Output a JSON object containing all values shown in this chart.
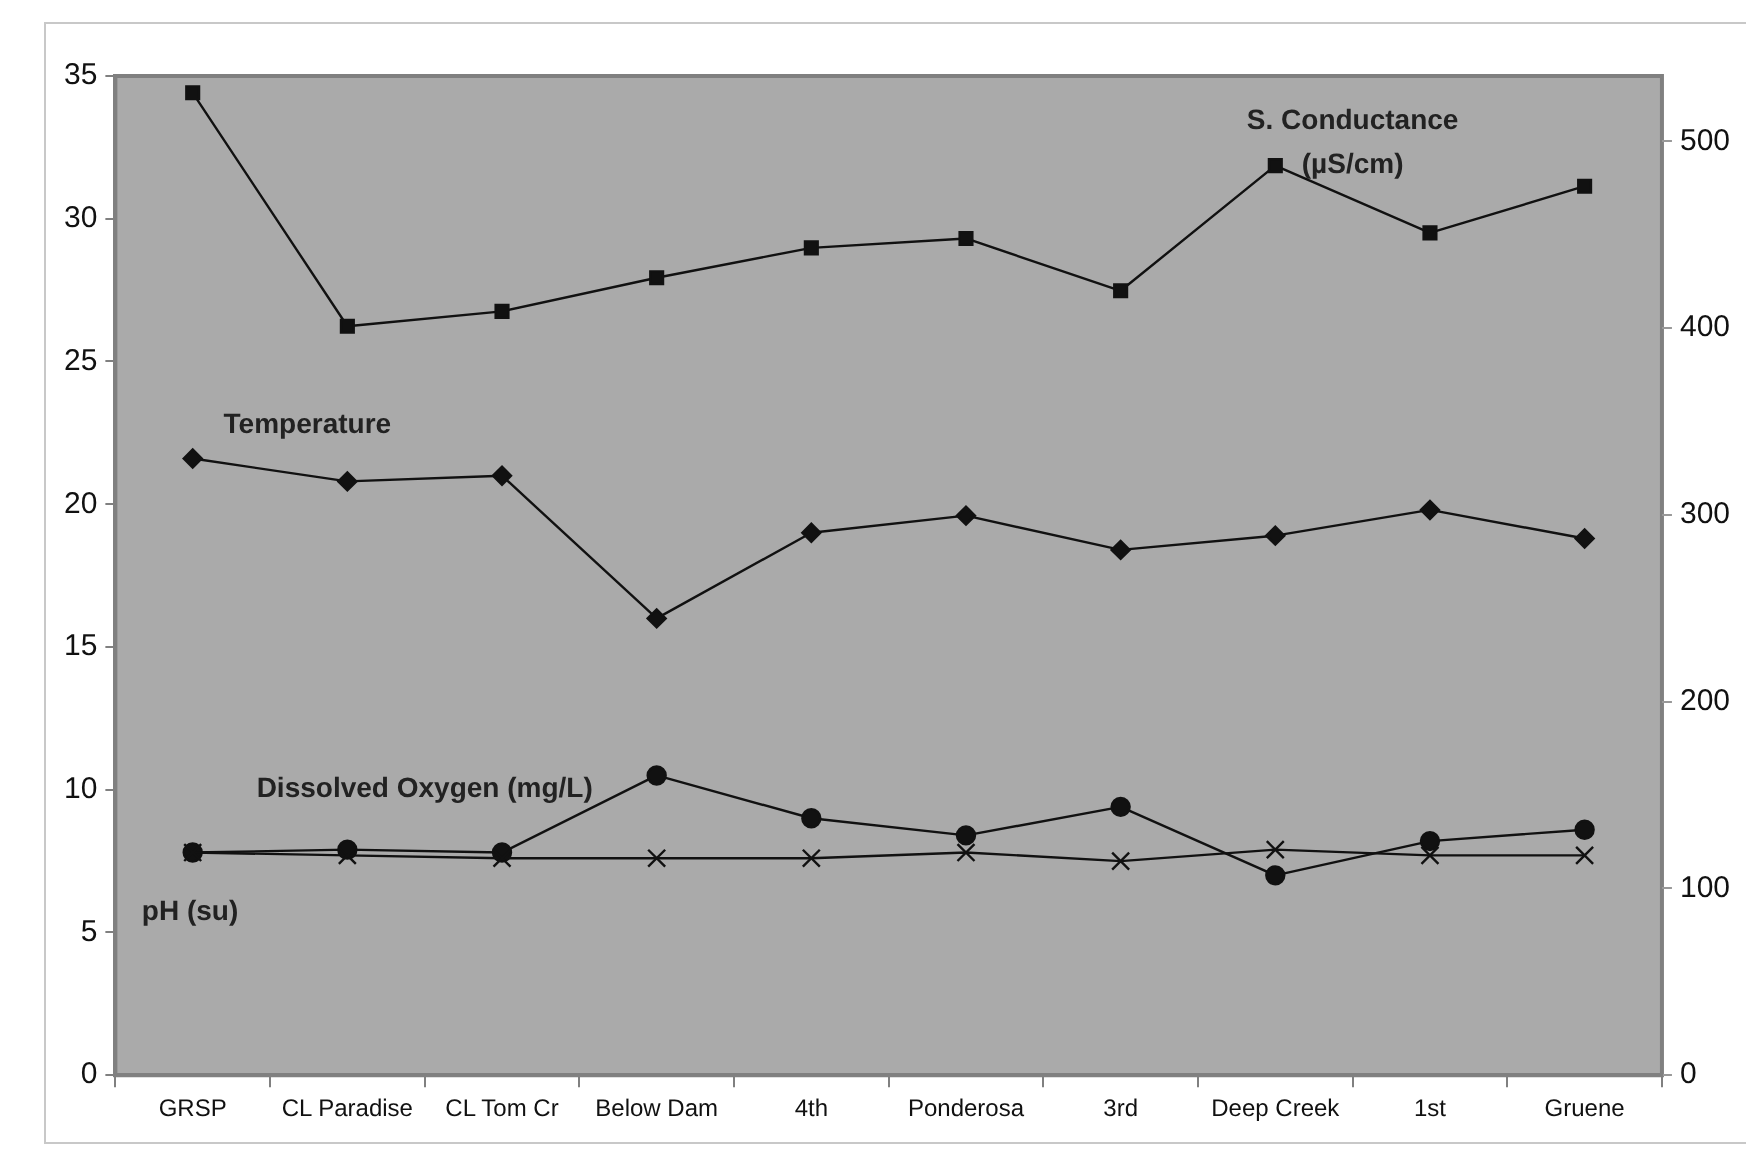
{
  "chart_data": {
    "type": "line",
    "categories": [
      "GRSP",
      "CL Paradise",
      "CL Tom Cr",
      "Below Dam",
      "4th",
      "Ponderosa",
      "3rd",
      "Deep Creek",
      "1st",
      "Gruene"
    ],
    "series": [
      {
        "name": "S. Conductance (µS/cm)",
        "color": "#111111",
        "marker": "square",
        "axis": "y2",
        "values": [
          526,
          401,
          409,
          427,
          443,
          448,
          420,
          487,
          451,
          476
        ]
      },
      {
        "name": "Temperature",
        "color": "#111111",
        "marker": "diamond",
        "values": [
          21.6,
          20.8,
          21.0,
          16.0,
          19.0,
          19.6,
          18.4,
          18.9,
          19.8,
          18.8
        ]
      },
      {
        "name": "Dissolved Oxygen (mg/L)",
        "color": "#111111",
        "marker": "circle",
        "values": [
          7.8,
          7.9,
          7.8,
          10.5,
          9.0,
          8.4,
          9.4,
          7.0,
          8.2,
          8.6
        ]
      },
      {
        "name": "pH (su)",
        "color": "#111111",
        "marker": "cross",
        "values": [
          7.8,
          7.7,
          7.6,
          7.6,
          7.6,
          7.8,
          7.5,
          7.9,
          7.7,
          7.7
        ]
      }
    ],
    "ylim": [
      0,
      35
    ],
    "yticks": [
      0,
      5,
      10,
      15,
      20,
      25,
      30,
      35
    ],
    "y2lim": [
      0,
      535
    ],
    "y2ticks": [
      0,
      100,
      200,
      300,
      400,
      500
    ],
    "grid": false,
    "legend": false,
    "line_style": "solid"
  }
}
